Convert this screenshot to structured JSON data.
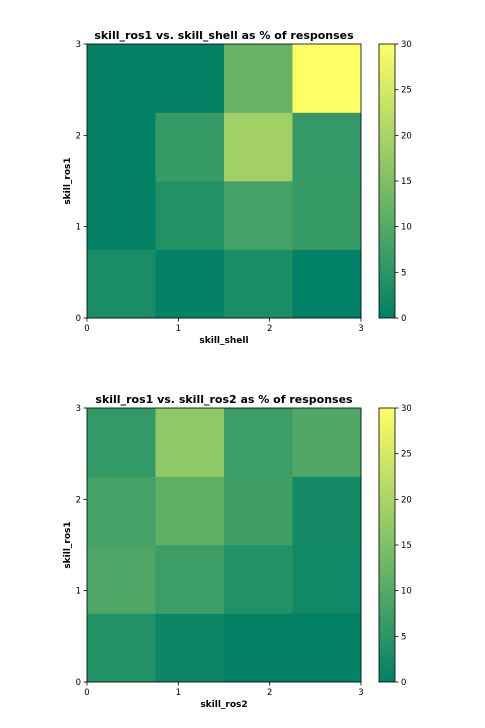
{
  "chart_data": [
    {
      "type": "heatmap",
      "title": "skill_ros1 vs. skill_shell as % of responses",
      "xlabel": "skill_shell",
      "ylabel": "skill_ros1",
      "x_ticks": [
        "0",
        "1",
        "2",
        "3"
      ],
      "y_ticks": [
        "0",
        "1",
        "2",
        "3"
      ],
      "xlim": [
        0,
        3
      ],
      "ylim": [
        0,
        3
      ],
      "colorbar": {
        "min": 0,
        "max": 30,
        "ticks": [
          "0",
          "5",
          "10",
          "15",
          "20",
          "25",
          "30"
        ]
      },
      "colormap": "summer",
      "rows_bottom_to_top": [
        [
          3,
          0.5,
          3,
          0
        ],
        [
          0.5,
          4,
          8,
          6.5
        ],
        [
          0.5,
          6.5,
          19,
          6
        ],
        [
          0.5,
          0.5,
          12,
          30
        ]
      ]
    },
    {
      "type": "heatmap",
      "title": "skill_ros1 vs. skill_ros2 as % of responses",
      "xlabel": "skill_ros2",
      "ylabel": "skill_ros1",
      "x_ticks": [
        "0",
        "1",
        "2",
        "3"
      ],
      "y_ticks": [
        "0",
        "1",
        "2",
        "3"
      ],
      "xlim": [
        0,
        3
      ],
      "ylim": [
        0,
        3
      ],
      "colorbar": {
        "min": 0,
        "max": 30,
        "ticks": [
          "0",
          "5",
          "10",
          "15",
          "20",
          "25",
          "30"
        ]
      },
      "colormap": "summer",
      "rows_bottom_to_top": [
        [
          4,
          1.5,
          0.5,
          0.5
        ],
        [
          9,
          7,
          4,
          2
        ],
        [
          8,
          11,
          7.5,
          2.5
        ],
        [
          6,
          17,
          7,
          9.5
        ]
      ]
    }
  ]
}
